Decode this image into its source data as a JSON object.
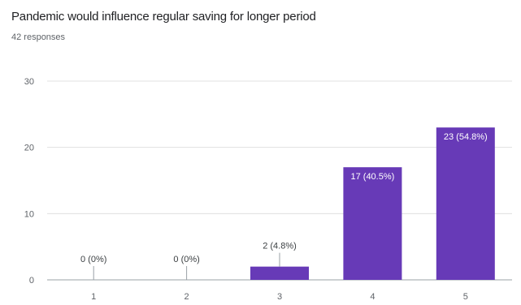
{
  "header": {
    "title": "Pandemic would influence regular saving for longer period",
    "responses": "42 responses"
  },
  "chart_data": {
    "type": "bar",
    "categories": [
      "1",
      "2",
      "3",
      "4",
      "5"
    ],
    "values": [
      0,
      0,
      2,
      17,
      23
    ],
    "data_labels": [
      "0 (0%)",
      "0 (0%)",
      "2 (4.8%)",
      "17 (40.5%)",
      "23 (54.8%)"
    ],
    "y_ticks": [
      0,
      10,
      20,
      30
    ],
    "ylim": [
      0,
      30
    ],
    "grid": true,
    "bar_color": "#673ab7",
    "inside_label_color": "#ffffff",
    "outside_label_color": "#3c4043"
  }
}
